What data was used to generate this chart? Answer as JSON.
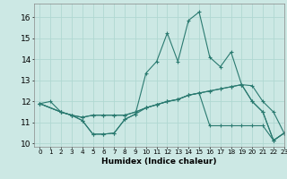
{
  "xlabel": "Humidex (Indice chaleur)",
  "xlim": [
    -0.5,
    23
  ],
  "ylim": [
    9.85,
    16.65
  ],
  "yticks": [
    10,
    11,
    12,
    13,
    14,
    15,
    16
  ],
  "xticks": [
    0,
    1,
    2,
    3,
    4,
    5,
    6,
    7,
    8,
    9,
    10,
    11,
    12,
    13,
    14,
    15,
    16,
    17,
    18,
    19,
    20,
    21,
    22,
    23
  ],
  "background_color": "#cce8e4",
  "grid_color": "#b0d8d2",
  "line_color": "#2a7a70",
  "s1_x": [
    0,
    1,
    2,
    3,
    4,
    5,
    6,
    7,
    8,
    9,
    10,
    11,
    12,
    13,
    14,
    15,
    16,
    17,
    18,
    19,
    20,
    21,
    22,
    23
  ],
  "s1_y": [
    11.9,
    12.0,
    11.5,
    11.35,
    11.1,
    10.45,
    10.45,
    10.5,
    11.15,
    11.4,
    13.35,
    13.9,
    15.25,
    13.9,
    15.85,
    16.25,
    14.1,
    13.65,
    14.35,
    12.8,
    12.75,
    12.0,
    11.5,
    10.5
  ],
  "s2_x": [
    0,
    2,
    3,
    4,
    5,
    6,
    7,
    8,
    9,
    10,
    11,
    12,
    13,
    14,
    15,
    16,
    17,
    18,
    19,
    20,
    21,
    22,
    23
  ],
  "s2_y": [
    11.9,
    11.5,
    11.35,
    11.25,
    11.35,
    11.35,
    11.35,
    11.35,
    11.5,
    11.7,
    11.85,
    12.0,
    12.1,
    12.3,
    12.4,
    12.5,
    12.6,
    12.7,
    12.8,
    12.0,
    11.5,
    10.15,
    10.5
  ],
  "s3_x": [
    0,
    2,
    3,
    4,
    5,
    6,
    7,
    8,
    9,
    10,
    11,
    12,
    13,
    14,
    15,
    16,
    17,
    18,
    19,
    20,
    21,
    22,
    23
  ],
  "s3_y": [
    11.9,
    11.5,
    11.35,
    11.1,
    10.45,
    10.45,
    10.5,
    11.15,
    11.4,
    11.7,
    11.85,
    12.0,
    12.1,
    12.3,
    12.4,
    12.5,
    12.6,
    12.7,
    12.8,
    12.0,
    11.5,
    10.15,
    10.5
  ],
  "s4_x": [
    0,
    2,
    3,
    4,
    5,
    6,
    7,
    8,
    9,
    10,
    11,
    12,
    13,
    14,
    15,
    16,
    17,
    18,
    19,
    20,
    21,
    22,
    23
  ],
  "s4_y": [
    11.9,
    11.5,
    11.35,
    11.25,
    11.35,
    11.35,
    11.35,
    11.35,
    11.5,
    11.7,
    11.85,
    12.0,
    12.1,
    12.3,
    12.4,
    10.85,
    10.85,
    10.85,
    10.85,
    10.85,
    10.85,
    10.15,
    10.5
  ]
}
